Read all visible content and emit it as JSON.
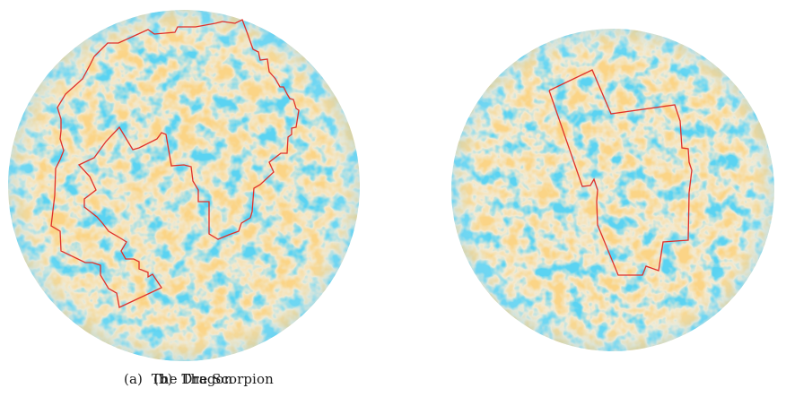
{
  "figures": [
    {
      "id": "a",
      "label": "(a)",
      "caption": "The Dragon"
    },
    {
      "id": "b",
      "label": "(b)",
      "caption": "The Scorpion"
    }
  ],
  "colors": {
    "sphere_base": "#f3ead2",
    "cold": "#1aa7e3",
    "hot": "#f6a83c",
    "outline": "#e0302a"
  }
}
